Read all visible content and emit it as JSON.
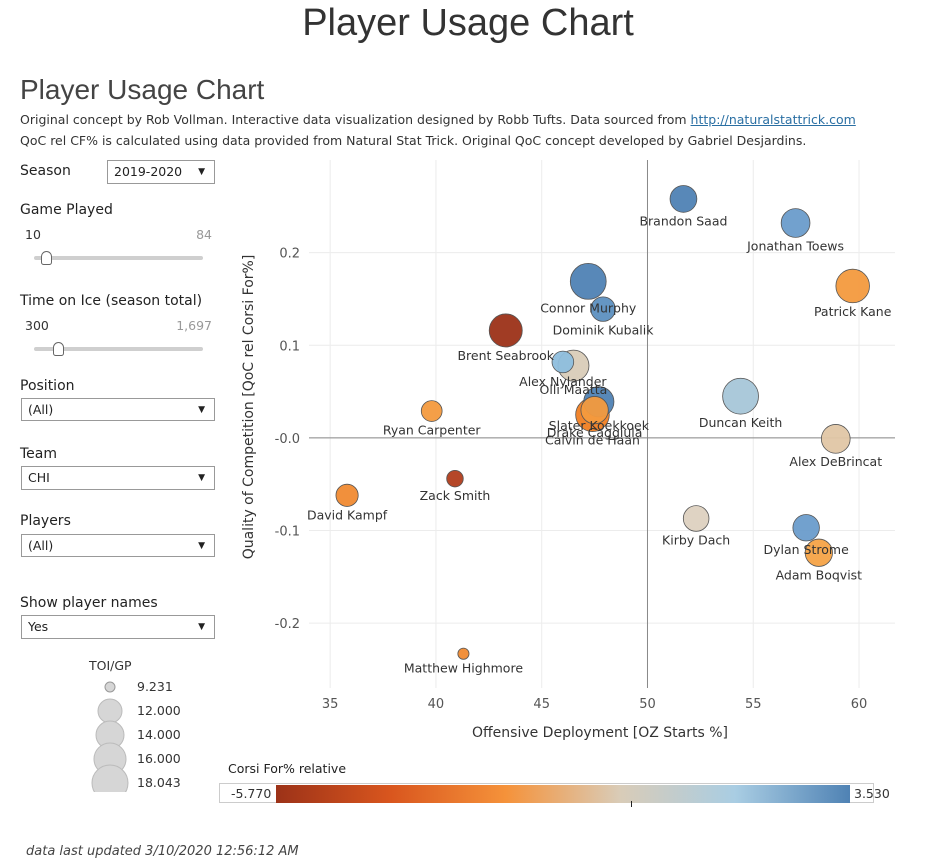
{
  "header": {
    "top_title": "Player Usage Chart",
    "subtitle": "Player Usage Chart",
    "desc_line1_prefix": "Original concept by Rob Vollman.  Interactive data visualization designed by Robb Tufts.  Data sourced from ",
    "desc_link": "http://naturalstattrick.com",
    "desc_line2": "QoC rel CF% is calculated using data provided from Natural Stat Trick.  Original QoC concept developed by Gabriel Desjardins."
  },
  "filters": {
    "season_label": "Season",
    "season_value": "2019-2020",
    "games_label": "Game Played",
    "games_min": "10",
    "games_max": "84",
    "toi_label": "Time on Ice (season total)",
    "toi_min": "300",
    "toi_max": "1,697",
    "position_label": "Position",
    "position_value": "(All)",
    "team_label": "Team",
    "team_value": "CHI",
    "players_label": "Players",
    "players_value": "(All)",
    "names_label": "Show player names",
    "names_value": "Yes"
  },
  "size_legend": {
    "title": "TOI/GP",
    "entries": [
      "9.231",
      "12.000",
      "14.000",
      "16.000",
      "18.043"
    ]
  },
  "color_legend": {
    "title": "Corsi For% relative",
    "min": "-5.770",
    "max": "3.530",
    "colors": [
      "#9c3218",
      "#d9561e",
      "#f5923a",
      "#d9ccb8",
      "#a9cde3",
      "#4f82b4"
    ]
  },
  "footer": "data last updated 3/10/2020 12:56:12 AM",
  "chart_data": {
    "type": "scatter",
    "xlabel": "Offensive Deployment [OZ Starts %]",
    "ylabel": "Quality of Competition [QoC rel Corsi For%]",
    "xlim": [
      34,
      61.7
    ],
    "ylim": [
      -0.27,
      0.3
    ],
    "xticks": [
      35,
      40,
      45,
      50,
      55,
      60
    ],
    "yticks": [
      0.2,
      0.1,
      0.0,
      -0.1,
      -0.2
    ],
    "ytick_labels": [
      "0.2",
      "0.1",
      "-0.0",
      "-0.1",
      "-0.2"
    ],
    "reference_x": 50,
    "reference_y": 0.0,
    "grid": true,
    "points": [
      {
        "name": "Brandon Saad",
        "x": 51.7,
        "y": 0.258,
        "size": 14.8,
        "color": "#4f82b4"
      },
      {
        "name": "Jonathan Toews",
        "x": 57.0,
        "y": 0.232,
        "size": 15.5,
        "color": "#6a9ccb"
      },
      {
        "name": "Patrick Kane",
        "x": 59.7,
        "y": 0.164,
        "size": 17.2,
        "color": "#f39a3e"
      },
      {
        "name": "Connor Murphy",
        "x": 47.2,
        "y": 0.169,
        "size": 18.0,
        "color": "#4f82b4"
      },
      {
        "name": "Dominik Kubalik",
        "x": 47.9,
        "y": 0.139,
        "size": 14.0,
        "color": "#5d90c0"
      },
      {
        "name": "Brent Seabrook",
        "x": 43.3,
        "y": 0.116,
        "size": 17.0,
        "color": "#9c3218"
      },
      {
        "name": "Alex Nylander",
        "x": 46.0,
        "y": 0.082,
        "size": 13.0,
        "color": "#8ebedd"
      },
      {
        "name": "Olli Maatta",
        "x": 46.5,
        "y": 0.078,
        "size": 16.3,
        "color": "#d9ccb8"
      },
      {
        "name": "Slater Koekkoek",
        "x": 47.7,
        "y": 0.039,
        "size": 16.0,
        "color": "#4f82b4"
      },
      {
        "name": "Drake Caggiula",
        "x": 47.5,
        "y": 0.03,
        "size": 15.0,
        "color": "#f39a3e"
      },
      {
        "name": "Calvin de Haan",
        "x": 47.4,
        "y": 0.025,
        "size": 17.2,
        "color": "#f07e22"
      },
      {
        "name": "Duncan Keith",
        "x": 54.4,
        "y": 0.045,
        "size": 18.0,
        "color": "#a7c6d8"
      },
      {
        "name": "Ryan Carpenter",
        "x": 39.8,
        "y": 0.029,
        "size": 12.7,
        "color": "#f39a3e"
      },
      {
        "name": "Alex DeBrincat",
        "x": 58.9,
        "y": -0.001,
        "size": 15.5,
        "color": "#e0c6a5"
      },
      {
        "name": "Zack Smith",
        "x": 40.9,
        "y": -0.044,
        "size": 11.2,
        "color": "#b13d1c"
      },
      {
        "name": "David Kampf",
        "x": 35.8,
        "y": -0.062,
        "size": 13.2,
        "color": "#f08a32"
      },
      {
        "name": "Kirby Dach",
        "x": 52.3,
        "y": -0.087,
        "size": 14.4,
        "color": "#ddd1c0"
      },
      {
        "name": "Dylan Strome",
        "x": 57.5,
        "y": -0.097,
        "size": 14.7,
        "color": "#6a9ccb"
      },
      {
        "name": "Adam Boqvist",
        "x": 58.1,
        "y": -0.124,
        "size": 15.0,
        "color": "#f5a347"
      },
      {
        "name": "Matthew Highmore",
        "x": 41.3,
        "y": -0.233,
        "size": 9.3,
        "color": "#f08a32"
      }
    ]
  }
}
